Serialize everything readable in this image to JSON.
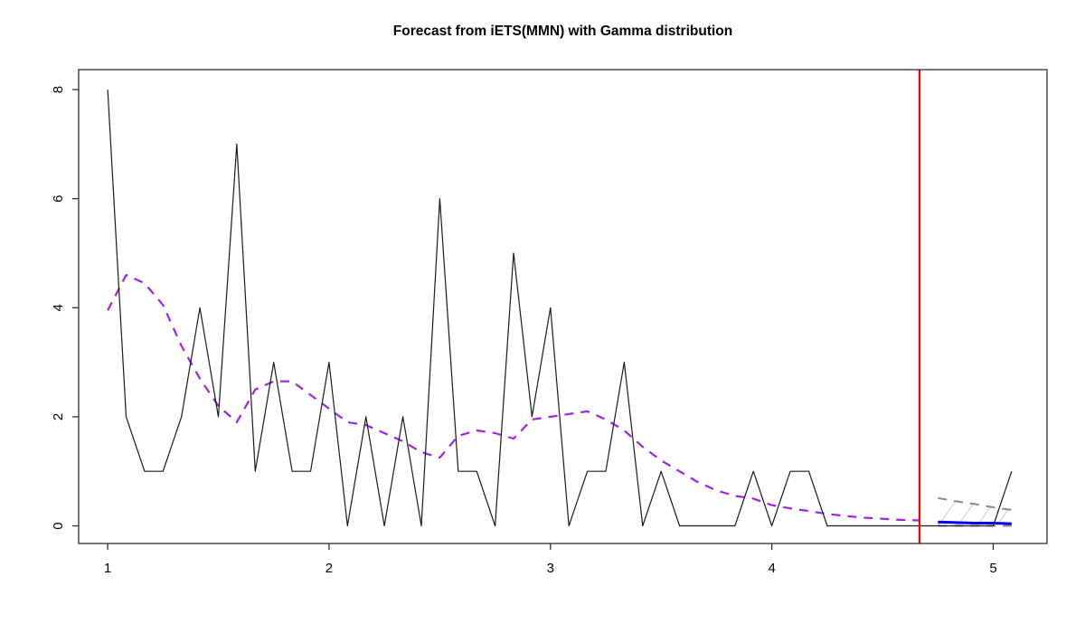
{
  "title": "Forecast from iETS(MMN) with Gamma distribution",
  "colors": {
    "actuals": "#1a1a1a",
    "fitted": "#A020F0",
    "forecast_origin": "#FF0000",
    "point_forecast": "#0000FF",
    "interval_bound": "#8a8a8a",
    "hatch": "#d9d9d9",
    "axis": "#303030",
    "tick_label": "#000000"
  },
  "chart_data": {
    "type": "line",
    "title": "Forecast from iETS(MMN) with Gamma distribution",
    "xlabel": "",
    "ylabel": "",
    "xlim": [
      0.869,
      5.243
    ],
    "ylim": [
      -0.323,
      8.366
    ],
    "x_ticks": [
      1,
      2,
      3,
      4,
      5
    ],
    "y_ticks": [
      0,
      2,
      4,
      6,
      8
    ],
    "grid": false,
    "legend_position": "none",
    "frequency": 12,
    "forecast_origin_line": {
      "x": 4.667,
      "color": "#FF0000"
    },
    "series": [
      {
        "name": "actuals",
        "type": "line",
        "color": "#1a1a1a",
        "width": 1.2,
        "dash": "",
        "x0": 1.0,
        "dx": 0.0833333,
        "values": [
          8,
          2,
          1,
          1,
          2,
          4,
          2,
          7,
          1,
          3,
          1,
          1,
          3,
          0,
          2,
          0,
          2,
          0,
          6,
          1,
          1,
          0,
          5,
          2,
          4,
          0,
          1,
          1,
          3,
          0,
          1,
          0,
          0,
          0,
          0,
          1,
          0,
          1,
          1,
          0,
          0,
          0,
          0,
          0,
          0,
          0,
          0,
          0,
          0,
          1
        ]
      },
      {
        "name": "fitted",
        "type": "line",
        "color": "#A020F0",
        "width": 2.2,
        "dash": "10 8",
        "x0": 1.0,
        "dx": 0.0833333,
        "values": [
          3.95,
          4.6,
          4.45,
          4.05,
          3.3,
          2.7,
          2.2,
          1.9,
          2.5,
          2.65,
          2.65,
          2.4,
          2.15,
          1.9,
          1.85,
          1.7,
          1.55,
          1.35,
          1.25,
          1.65,
          1.75,
          1.7,
          1.6,
          1.95,
          2.0,
          2.05,
          2.1,
          1.95,
          1.75,
          1.45,
          1.2,
          1.0,
          0.8,
          0.65,
          0.55,
          0.5,
          0.38,
          0.32,
          0.27,
          0.22,
          0.18,
          0.15,
          0.13,
          0.11,
          0.1
        ]
      },
      {
        "name": "lower_bound",
        "type": "line",
        "color": "#8a8a8a",
        "width": 2,
        "dash": "10 8",
        "x": [
          4.75,
          4.833,
          4.917,
          5.0,
          5.083
        ],
        "values": [
          0.0,
          0.0,
          0.0,
          0.0,
          0.0
        ]
      },
      {
        "name": "upper_bound",
        "type": "line",
        "color": "#8a8a8a",
        "width": 2,
        "dash": "10 8",
        "x": [
          4.75,
          4.833,
          4.917,
          5.0,
          5.083
        ],
        "values": [
          0.51,
          0.45,
          0.4,
          0.34,
          0.29
        ]
      },
      {
        "name": "point_forecast",
        "type": "line",
        "color": "#0000FF",
        "width": 3,
        "dash": "",
        "x": [
          4.75,
          4.833,
          4.917,
          5.0,
          5.083
        ],
        "values": [
          0.07,
          0.06,
          0.05,
          0.05,
          0.04
        ]
      }
    ],
    "hatch": {
      "x_start": 4.655,
      "spacing": 0.088,
      "run": 0.13,
      "base": -0.05,
      "rise": 0.75,
      "count": 6,
      "color": "#d9d9d9"
    }
  }
}
